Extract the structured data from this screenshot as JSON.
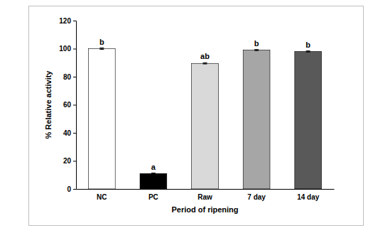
{
  "chart_data": {
    "type": "bar",
    "x_label": "Period of ripening",
    "y_label": "% Relative activity",
    "categories": [
      "NC",
      "PC",
      "Raw",
      "7 day",
      "14 day"
    ],
    "values": [
      100,
      11,
      89.5,
      99,
      98
    ],
    "errors": [
      0.5,
      0.3,
      0.4,
      0.4,
      0.4
    ],
    "annotations": [
      "b",
      "a",
      "ab",
      "b",
      "b"
    ],
    "colors": [
      "#ffffff",
      "#000000",
      "#d9d9d9",
      "#a6a6a6",
      "#595959"
    ],
    "ylim": [
      0,
      120
    ],
    "yticks": [
      0,
      20,
      40,
      60,
      80,
      100,
      120
    ],
    "grid": false
  }
}
